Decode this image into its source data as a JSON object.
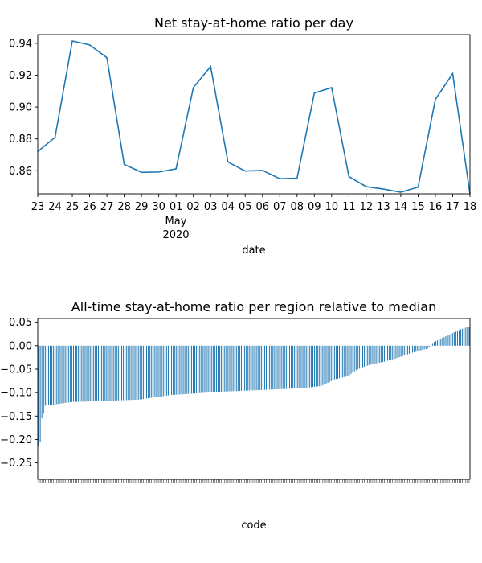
{
  "chart_data": [
    {
      "type": "line",
      "title": "Net stay-at-home ratio per day",
      "xlabel": "date",
      "ylabel": "",
      "x": [
        "2020-04-23",
        "2020-04-24",
        "2020-04-25",
        "2020-04-26",
        "2020-04-27",
        "2020-04-28",
        "2020-04-29",
        "2020-04-30",
        "2020-05-01",
        "2020-05-02",
        "2020-05-03",
        "2020-05-04",
        "2020-05-05",
        "2020-05-06",
        "2020-05-07",
        "2020-05-08",
        "2020-05-09",
        "2020-05-10",
        "2020-05-11",
        "2020-05-12",
        "2020-05-13",
        "2020-05-14",
        "2020-05-15",
        "2020-05-16",
        "2020-05-17",
        "2020-05-18"
      ],
      "x_tick_labels": [
        "23",
        "24",
        "25",
        "26",
        "27",
        "28",
        "29",
        "30",
        "01",
        "02",
        "03",
        "04",
        "05",
        "06",
        "07",
        "08",
        "09",
        "10",
        "11",
        "12",
        "13",
        "14",
        "15",
        "16",
        "17",
        "18"
      ],
      "x_sublabels": [
        "May",
        "2020"
      ],
      "y": [
        0.872,
        0.881,
        0.9415,
        0.939,
        0.931,
        0.864,
        0.859,
        0.8592,
        0.8612,
        0.9122,
        0.9255,
        0.8655,
        0.8598,
        0.8602,
        0.855,
        0.8553,
        0.9088,
        0.9122,
        0.8563,
        0.85,
        0.8485,
        0.8465,
        0.8497,
        0.9048,
        0.921,
        0.8455
      ],
      "y_ticks": [
        "0.86",
        "0.88",
        "0.90",
        "0.92",
        "0.94"
      ],
      "y_tick_values": [
        0.86,
        0.88,
        0.9,
        0.92,
        0.94
      ],
      "ylim": [
        0.8455,
        0.9455
      ],
      "color": "#1f77b4",
      "grid": false
    },
    {
      "type": "bar",
      "title": "All-time stay-at-home ratio per region relative to median",
      "xlabel": "code",
      "ylabel": "",
      "y_ticks": [
        "0.05",
        "0.00",
        "−0.05",
        "−0.10",
        "−0.15",
        "−0.20",
        "−0.25"
      ],
      "y_tick_values": [
        0.05,
        0.0,
        -0.05,
        -0.1,
        -0.15,
        -0.2,
        -0.25
      ],
      "ylim": [
        -0.285,
        0.058
      ],
      "color": "#1f77b4",
      "n_bars": 260,
      "value_profile": [
        [
          0,
          -0.215
        ],
        [
          1,
          -0.205
        ],
        [
          2,
          -0.155
        ],
        [
          3,
          -0.145
        ],
        [
          4,
          -0.128
        ],
        [
          20,
          -0.12
        ],
        [
          60,
          -0.115
        ],
        [
          80,
          -0.105
        ],
        [
          110,
          -0.098
        ],
        [
          150,
          -0.092
        ],
        [
          160,
          -0.09
        ],
        [
          170,
          -0.086
        ],
        [
          178,
          -0.072
        ],
        [
          186,
          -0.065
        ],
        [
          192,
          -0.05
        ],
        [
          200,
          -0.04
        ],
        [
          208,
          -0.034
        ],
        [
          216,
          -0.026
        ],
        [
          224,
          -0.016
        ],
        [
          230,
          -0.01
        ],
        [
          234,
          -0.006
        ],
        [
          236,
          0.0
        ],
        [
          238,
          0.008
        ],
        [
          242,
          0.015
        ],
        [
          248,
          0.025
        ],
        [
          254,
          0.035
        ],
        [
          258,
          0.04
        ],
        [
          262,
          0.042
        ],
        [
          500,
          0.043
        ]
      ],
      "grid": false
    }
  ]
}
